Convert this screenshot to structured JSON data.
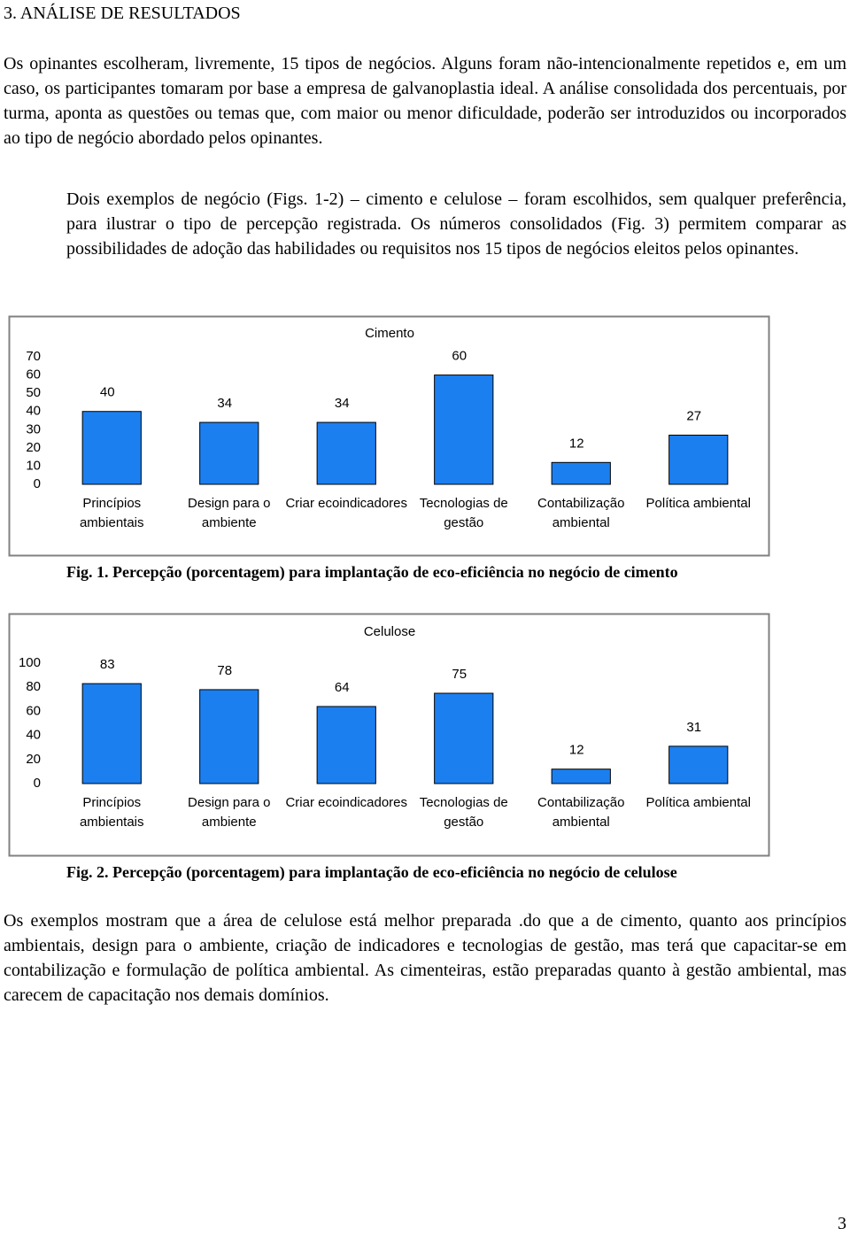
{
  "heading": "3. ANÁLISE DE RESULTADOS",
  "paragraphs": [
    "Os opinantes escolheram, livremente, 15 tipos de negócios. Alguns foram não-intencionalmente repetidos e, em um caso, os participantes tomaram por base a empresa de galvanoplastia ideal. A análise consolidada dos percentuais, por turma, aponta as questões ou temas que, com maior ou menor dificuldade, poderão ser introduzidos ou incorporados ao tipo de negócio abordado pelos opinantes.",
    "Dois exemplos de negócio (Figs. 1-2) – cimento e celulose – foram escolhidos, sem qualquer preferência, para ilustrar o tipo de percepção registrada. Os números consolidados (Fig. 3) permitem comparar as possibilidades de adoção das habilidades ou requisitos nos 15 tipos de negócios eleitos pelos opinantes.",
    "Os exemplos mostram que a área de celulose está melhor preparada .do que a de cimento, quanto aos princípios ambientais, design para o ambiente, criação de indicadores e tecnologias de gestão, mas terá que capacitar-se em contabilização e formulação de política ambiental. As cimenteiras, estão preparadas quanto à gestão ambiental, mas carecem de capacitação nos demais domínios."
  ],
  "chart_data": [
    {
      "type": "bar",
      "title": "Cimento",
      "categories": [
        "Princípios ambientais",
        "Design para o ambiente",
        "Criar ecoindicadores",
        "Tecnologias de gestão",
        "Contabilização ambiental",
        "Política ambiental"
      ],
      "values": [
        40,
        34,
        34,
        60,
        12,
        27
      ],
      "color": "#1c7ff0",
      "ylim": [
        0,
        70
      ],
      "yticks": [
        0,
        10,
        20,
        30,
        40,
        50,
        60,
        70
      ],
      "caption": "Fig. 1. Percepção (porcentagem) para implantação de eco-eficiência no negócio de cimento"
    },
    {
      "type": "bar",
      "title": "Celulose",
      "categories": [
        "Princípios ambientais",
        "Design para o ambiente",
        "Criar ecoindicadores",
        "Tecnologias de gestão",
        "Contabilização ambiental",
        "Política ambiental"
      ],
      "values": [
        83,
        78,
        64,
        75,
        12,
        31
      ],
      "color": "#1c7ff0",
      "ylim": [
        0,
        100
      ],
      "yticks": [
        0,
        20,
        40,
        60,
        80,
        100
      ],
      "caption": "Fig. 2. Percepção (porcentagem) para implantação de eco-eficiência no negócio de celulose"
    }
  ],
  "page_number": "3"
}
